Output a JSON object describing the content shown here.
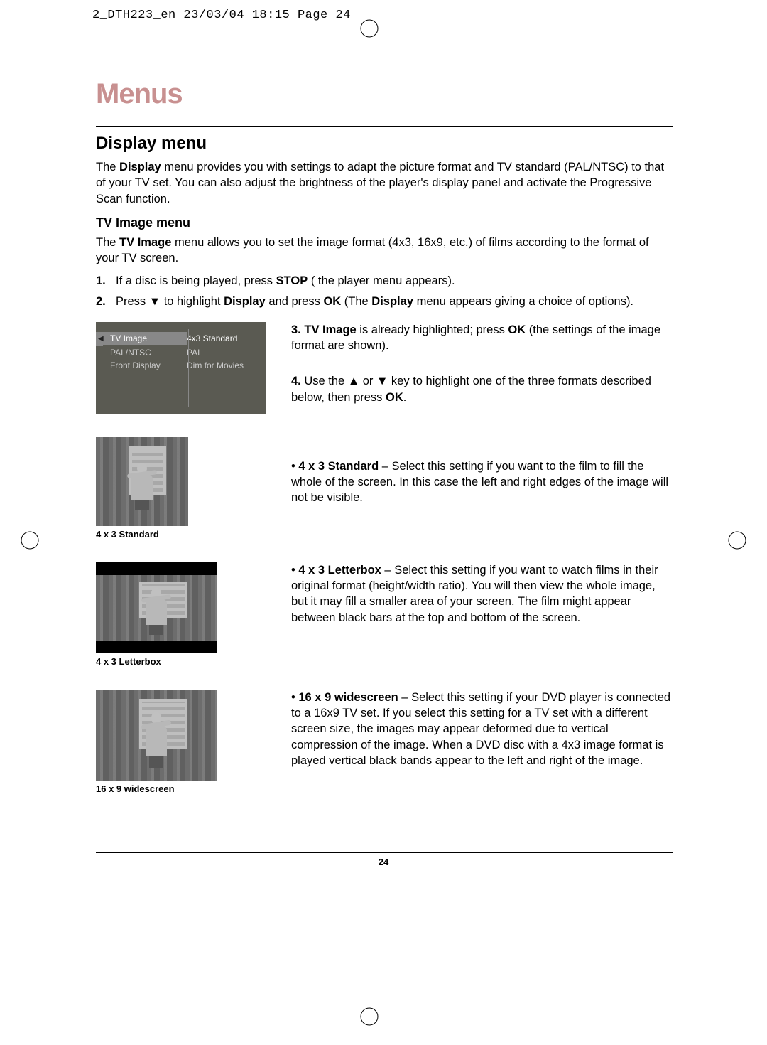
{
  "crop_header": "2_DTH223_en  23/03/04  18:15  Page 24",
  "title": "Menus",
  "section_title": "Display menu",
  "section_para_parts": {
    "p1_a": "The ",
    "p1_b": "Display",
    "p1_c": " menu provides you with settings to adapt the picture format and TV standard (PAL/NTSC) to that of your TV set. You can also adjust the brightness of the player's display panel and activate the Progressive Scan function."
  },
  "tv_image_title": "TV Image menu",
  "tv_image_para": {
    "a": "The ",
    "b": "TV Image",
    "c": " menu allows you to set the image format (4x3, 16x9, etc.) of films according to the format of your TV screen."
  },
  "step1": {
    "num": "1.",
    "a": "If a disc is being played, press ",
    "b": "STOP",
    "c": " ( the player menu appears)."
  },
  "step2": {
    "num": "2.",
    "a": "Press ",
    "arrow": "▼",
    "b": " to highlight ",
    "c": "Display",
    "d": " and press ",
    "e": "OK",
    "f": " (The ",
    "g": "Display",
    "h": " menu appears giving a choice of options)."
  },
  "step3": {
    "num": "3.",
    "a": "TV Image",
    "b": " is already highlighted; press ",
    "c": "OK",
    "d": " (the settings of the image format are shown)."
  },
  "step4": {
    "num": "4.",
    "a": "Use the ",
    "up": "▲",
    "b": " or ",
    "down": "▼",
    "c": " key to highlight one of the three formats described below, then press ",
    "d": "OK",
    "e": "."
  },
  "menu_screenshot": {
    "rows": [
      {
        "label": "TV Image",
        "value": "4x3 Standard",
        "hl": true
      },
      {
        "label": "PAL/NTSC",
        "value": "PAL",
        "hl": false
      },
      {
        "label": "Front Display",
        "value": "Dim for Movies",
        "hl": false
      }
    ],
    "bg": "#5a5a52"
  },
  "fmt_std": {
    "caption": "4 x 3 Standard",
    "bold": "4 x 3 Standard",
    "text": " – Select this setting if you want to the film to fill the whole of the screen. In this case the left and right edges of the image will not be visible."
  },
  "fmt_lb": {
    "caption": "4 x 3 Letterbox",
    "bold": "4 x 3 Letterbox",
    "text": " – Select this setting if you want to watch films in their original format (height/width ratio). You will then view the whole image, but it may fill a smaller area of your screen. The film might appear between black bars at the top and bottom of the screen."
  },
  "fmt_ws": {
    "caption": "16 x 9 widescreen",
    "bold": "16 x 9 widescreen",
    "text": " – Select this setting if your DVD player is connected to a 16x9 TV set. If you select this setting for a TV set with a different screen size, the images may appear deformed due to vertical compression of the image. When a DVD disc with a 4x3 image format is played vertical black bands appear to the left and right of the image."
  },
  "page_number": "24",
  "colors": {
    "title": "#c89090",
    "text": "#000000",
    "bg": "#ffffff"
  }
}
